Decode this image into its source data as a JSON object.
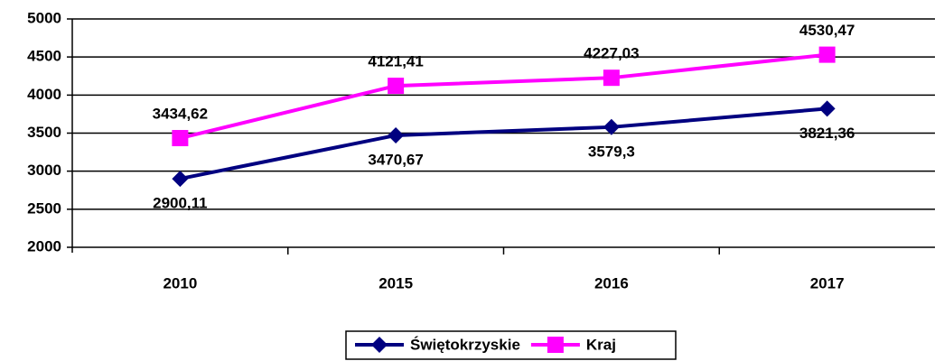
{
  "chart_data": {
    "type": "line",
    "categories": [
      "2010",
      "2015",
      "2016",
      "2017"
    ],
    "series": [
      {
        "name": "Świętokrzyskie",
        "color": "#000080",
        "marker": "diamond",
        "values": [
          2900.11,
          3470.67,
          3579.3,
          3821.36
        ],
        "value_labels": [
          "2900,11",
          "3470,67",
          "3579,3",
          "3821,36"
        ]
      },
      {
        "name": "Kraj",
        "color": "#ff00ff",
        "marker": "square",
        "values": [
          3434.62,
          4121.41,
          4227.03,
          4530.47
        ],
        "value_labels": [
          "3434,62",
          "4121,41",
          "4227,03",
          "4530,47"
        ]
      }
    ],
    "ylim": [
      2000,
      5000
    ],
    "yticks": [
      2000,
      2500,
      3000,
      3500,
      4000,
      4500,
      5000
    ],
    "grid": true,
    "legend": "bottom"
  }
}
